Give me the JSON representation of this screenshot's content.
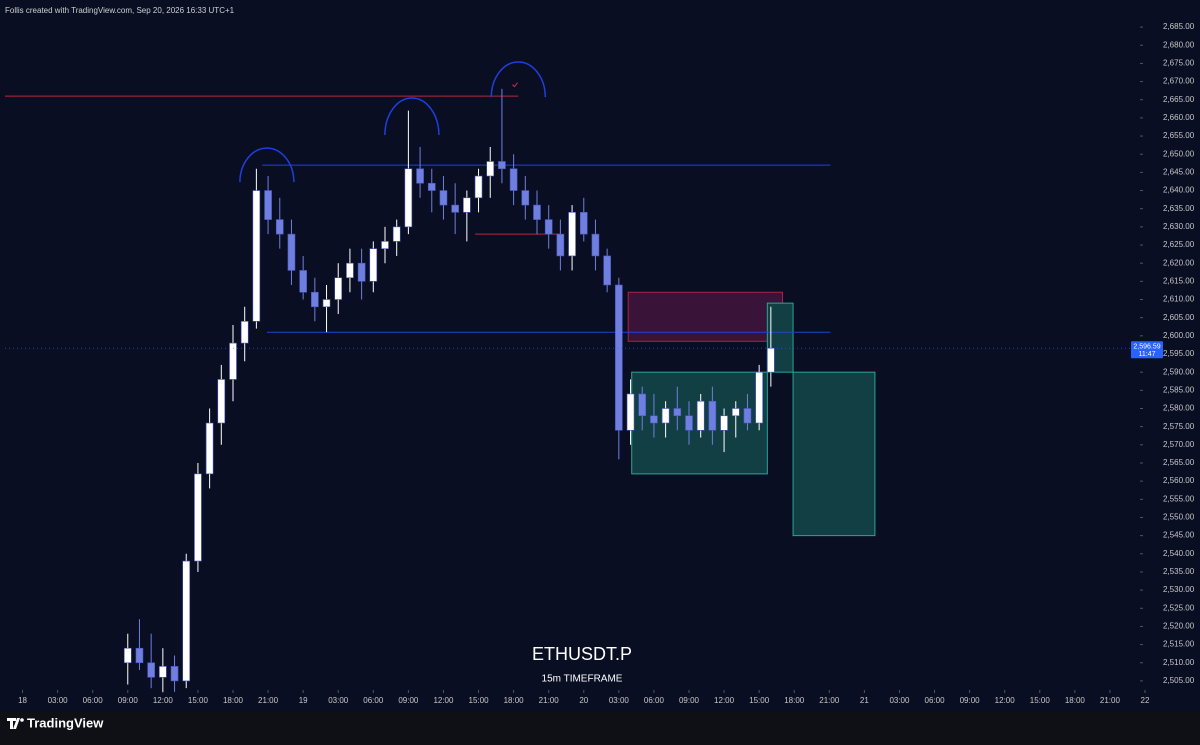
{
  "header": "Follis created with TradingView.com, Sep 20, 2026 16:33 UTC+1",
  "footer": {
    "logo": "TradingView"
  },
  "chart_data": {
    "type": "candlestick",
    "title": "ETHUSDT.P",
    "subtitle": "15m TIMEFRAME",
    "up_color": "#ffffff",
    "down_color": "#6f7fe0",
    "x": [
      9,
      10,
      11,
      12,
      13,
      14,
      15,
      16,
      17,
      18,
      19,
      20,
      21,
      22,
      23,
      24,
      25,
      26,
      27,
      28,
      29,
      30,
      31,
      32,
      33,
      34,
      35,
      36,
      37,
      38,
      39,
      40,
      41,
      42,
      43,
      44,
      45,
      46,
      47,
      48,
      49,
      50,
      51,
      52,
      53,
      54,
      55,
      56,
      57,
      58,
      59,
      60,
      61,
      62,
      63,
      64
    ],
    "open": [
      2510,
      2514,
      2510,
      2506,
      2509,
      2505,
      2538,
      2562,
      2576,
      2588,
      2598,
      2604,
      2640,
      2632,
      2628,
      2618,
      2612,
      2608,
      2610,
      2616,
      2620,
      2615,
      2624,
      2626,
      2630,
      2646,
      2642,
      2640,
      2636,
      2634,
      2638,
      2644,
      2648,
      2646,
      2640,
      2636,
      2632,
      2628,
      2622,
      2634,
      2628,
      2622,
      2614,
      2574,
      2584,
      2578,
      2576,
      2580,
      2578,
      2574,
      2582,
      2574,
      2578,
      2580,
      2576,
      2590
    ],
    "high": [
      2518,
      2522,
      2518,
      2514,
      2512,
      2540,
      2565,
      2580,
      2592,
      2603,
      2608,
      2646,
      2644,
      2638,
      2632,
      2622,
      2616,
      2614,
      2620,
      2624,
      2624,
      2626,
      2630,
      2632,
      2662,
      2652,
      2646,
      2644,
      2642,
      2640,
      2646,
      2652,
      2668,
      2650,
      2644,
      2640,
      2636,
      2632,
      2636,
      2638,
      2632,
      2624,
      2616,
      2588,
      2586,
      2584,
      2582,
      2586,
      2582,
      2584,
      2586,
      2580,
      2582,
      2584,
      2592,
      2608
    ],
    "low": [
      2504,
      2508,
      2503,
      2502,
      2502,
      2503,
      2535,
      2558,
      2570,
      2582,
      2593,
      2602,
      2628,
      2624,
      2614,
      2610,
      2604,
      2601,
      2606,
      2612,
      2610,
      2612,
      2620,
      2622,
      2628,
      2638,
      2634,
      2632,
      2628,
      2626,
      2634,
      2638,
      2642,
      2636,
      2632,
      2628,
      2624,
      2618,
      2618,
      2626,
      2618,
      2612,
      2566,
      2570,
      2574,
      2572,
      2572,
      2574,
      2570,
      2572,
      2570,
      2568,
      2572,
      2574,
      2574,
      2586
    ],
    "close": [
      2514,
      2510,
      2506,
      2509,
      2505,
      2538,
      2562,
      2576,
      2588,
      2598,
      2604,
      2640,
      2632,
      2628,
      2618,
      2612,
      2608,
      2610,
      2616,
      2620,
      2615,
      2624,
      2626,
      2630,
      2646,
      2642,
      2640,
      2636,
      2634,
      2638,
      2644,
      2648,
      2646,
      2640,
      2636,
      2632,
      2628,
      2622,
      2634,
      2628,
      2622,
      2614,
      2574,
      2584,
      2578,
      2576,
      2580,
      2578,
      2574,
      2582,
      2574,
      2578,
      2580,
      2576,
      2590,
      2596.59
    ],
    "last_price": {
      "value": 2596.59,
      "label": "2,596.59",
      "countdown": "11:47",
      "color": "#2962ff"
    },
    "xlim": [
      -1.5,
      96
    ],
    "ylim": [
      2502.5,
      2687.5
    ],
    "xticks": [
      {
        "value": 0,
        "label": "18"
      },
      {
        "value": 3,
        "label": "03:00"
      },
      {
        "value": 6,
        "label": "06:00"
      },
      {
        "value": 9,
        "label": "09:00"
      },
      {
        "value": 12,
        "label": "12:00"
      },
      {
        "value": 15,
        "label": "15:00"
      },
      {
        "value": 18,
        "label": "18:00"
      },
      {
        "value": 21,
        "label": "21:00"
      },
      {
        "value": 24,
        "label": "19"
      },
      {
        "value": 27,
        "label": "03:00"
      },
      {
        "value": 30,
        "label": "06:00"
      },
      {
        "value": 33,
        "label": "09:00"
      },
      {
        "value": 36,
        "label": "12:00"
      },
      {
        "value": 39,
        "label": "15:00"
      },
      {
        "value": 42,
        "label": "18:00"
      },
      {
        "value": 45,
        "label": "21:00"
      },
      {
        "value": 48,
        "label": "20"
      },
      {
        "value": 51,
        "label": "03:00"
      },
      {
        "value": 54,
        "label": "06:00"
      },
      {
        "value": 57,
        "label": "09:00"
      },
      {
        "value": 60,
        "label": "12:00"
      },
      {
        "value": 63,
        "label": "15:00"
      },
      {
        "value": 66,
        "label": "18:00"
      },
      {
        "value": 69,
        "label": "21:00"
      },
      {
        "value": 72,
        "label": "21"
      },
      {
        "value": 75,
        "label": "03:00"
      },
      {
        "value": 78,
        "label": "06:00"
      },
      {
        "value": 81,
        "label": "09:00"
      },
      {
        "value": 84,
        "label": "12:00"
      },
      {
        "value": 87,
        "label": "15:00"
      },
      {
        "value": 90,
        "label": "18:00"
      },
      {
        "value": 93,
        "label": "21:00"
      },
      {
        "value": 96,
        "label": "22"
      }
    ],
    "yticks": [
      {
        "value": 2505,
        "label": "2,505.00"
      },
      {
        "value": 2510,
        "label": "2,510.00"
      },
      {
        "value": 2515,
        "label": "2,515.00"
      },
      {
        "value": 2520,
        "label": "2,520.00"
      },
      {
        "value": 2525,
        "label": "2,525.00"
      },
      {
        "value": 2530,
        "label": "2,530.00"
      },
      {
        "value": 2535,
        "label": "2,535.00"
      },
      {
        "value": 2540,
        "label": "2,540.00"
      },
      {
        "value": 2545,
        "label": "2,545.00"
      },
      {
        "value": 2550,
        "label": "2,550.00"
      },
      {
        "value": 2555,
        "label": "2,555.00"
      },
      {
        "value": 2560,
        "label": "2,560.00"
      },
      {
        "value": 2565,
        "label": "2,565.00"
      },
      {
        "value": 2570,
        "label": "2,570.00"
      },
      {
        "value": 2575,
        "label": "2,575.00"
      },
      {
        "value": 2580,
        "label": "2,580.00"
      },
      {
        "value": 2585,
        "label": "2,585.00"
      },
      {
        "value": 2590,
        "label": "2,590.00"
      },
      {
        "value": 2595,
        "label": "2,595.00"
      },
      {
        "value": 2600,
        "label": "2,600.00"
      },
      {
        "value": 2605,
        "label": "2,605.00"
      },
      {
        "value": 2610,
        "label": "2,610.00"
      },
      {
        "value": 2615,
        "label": "2,615.00"
      },
      {
        "value": 2620,
        "label": "2,620.00"
      },
      {
        "value": 2625,
        "label": "2,625.00"
      },
      {
        "value": 2630,
        "label": "2,630.00"
      },
      {
        "value": 2635,
        "label": "2,635.00"
      },
      {
        "value": 2640,
        "label": "2,640.00"
      },
      {
        "value": 2645,
        "label": "2,645.00"
      },
      {
        "value": 2650,
        "label": "2,650.00"
      },
      {
        "value": 2655,
        "label": "2,655.00"
      },
      {
        "value": 2660,
        "label": "2,660.00"
      },
      {
        "value": 2665,
        "label": "2,665.00"
      },
      {
        "value": 2670,
        "label": "2,670.00"
      },
      {
        "value": 2675,
        "label": "2,675.00"
      },
      {
        "value": 2680,
        "label": "2,680.00"
      },
      {
        "value": 2685,
        "label": "2,685.00"
      }
    ],
    "lines": [
      {
        "price": 2666,
        "from": -1.5,
        "to": 42.4,
        "color": "#b2283a"
      },
      {
        "price": 2647,
        "from": 20.5,
        "to": 69.1,
        "color": "#2340d8"
      },
      {
        "price": 2601,
        "from": 20.9,
        "to": 69.1,
        "color": "#2340d8"
      },
      {
        "price": 2628,
        "from": 38.7,
        "to": 46,
        "color": "#b2283a"
      }
    ],
    "zones": [
      {
        "top": 2612,
        "bottom": 2598.5,
        "from": 51.8,
        "to": 65,
        "fill": "#3a1438",
        "stroke": "#b02040"
      },
      {
        "top": 2590,
        "bottom": 2562,
        "from": 52.1,
        "to": 63.7,
        "fill": "#123f44",
        "stroke": "#26a69a"
      },
      {
        "top": 2609,
        "bottom": 2590,
        "from": 63.7,
        "to": 65.9,
        "fill": "#123f44",
        "stroke": "#26a69a"
      },
      {
        "top": 2590,
        "bottom": 2545,
        "from": 65.9,
        "to": 72.9,
        "fill": "#123f44",
        "stroke": "#26a69a"
      }
    ],
    "arcs": [
      {
        "x": 20.9,
        "top": 2651.7,
        "base": 2642.3
      },
      {
        "x": 33.3,
        "top": 2665.5,
        "base": 2655.3
      },
      {
        "x": 42.4,
        "top": 2675.4,
        "base": 2665.7
      }
    ],
    "arc_color": "#1f3fe0"
  }
}
